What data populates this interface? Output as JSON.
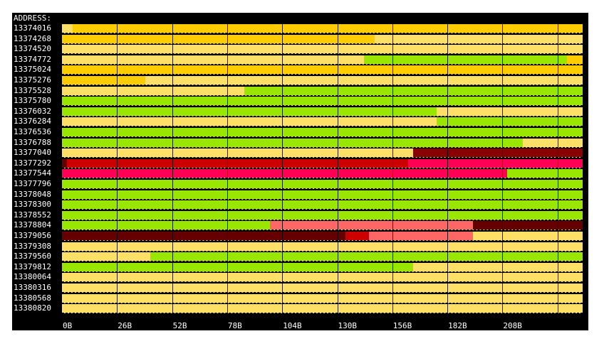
{
  "header_label": "ADDRESS:",
  "ticks": [
    "0B",
    "26B",
    "52B",
    "78B",
    "104B",
    "130B",
    "156B",
    "182B",
    "208B"
  ],
  "colors": {
    "pale_yellow": "#ffe066",
    "gold": "#ffcc00",
    "lime": "#99e600",
    "crimson": "#cc0000",
    "maroon": "#880000",
    "dark_maroon": "#660000",
    "pink": "#ff0055",
    "salmon": "#ff6666"
  },
  "rows": [
    {
      "address": "13374016",
      "segments": [
        {
          "from": 0,
          "to": 0.02,
          "color": "pale_yellow"
        },
        {
          "from": 0.02,
          "to": 1,
          "color": "gold"
        }
      ]
    },
    {
      "address": "13374268",
      "segments": [
        {
          "from": 0,
          "to": 0.6,
          "color": "gold"
        },
        {
          "from": 0.6,
          "to": 1,
          "color": "pale_yellow"
        }
      ]
    },
    {
      "address": "13374520",
      "segments": [
        {
          "from": 0,
          "to": 1,
          "color": "pale_yellow"
        }
      ]
    },
    {
      "address": "13374772",
      "segments": [
        {
          "from": 0,
          "to": 0.58,
          "color": "pale_yellow"
        },
        {
          "from": 0.58,
          "to": 0.97,
          "color": "lime"
        },
        {
          "from": 0.97,
          "to": 1,
          "color": "gold"
        }
      ]
    },
    {
      "address": "13375024",
      "segments": [
        {
          "from": 0,
          "to": 1,
          "color": "gold"
        }
      ]
    },
    {
      "address": "13375276",
      "segments": [
        {
          "from": 0,
          "to": 0.16,
          "color": "gold"
        },
        {
          "from": 0.16,
          "to": 1,
          "color": "pale_yellow"
        }
      ]
    },
    {
      "address": "13375528",
      "segments": [
        {
          "from": 0,
          "to": 0.35,
          "color": "pale_yellow"
        },
        {
          "from": 0.35,
          "to": 1,
          "color": "lime"
        }
      ]
    },
    {
      "address": "13375780",
      "segments": [
        {
          "from": 0,
          "to": 1,
          "color": "lime"
        }
      ]
    },
    {
      "address": "13376032",
      "segments": [
        {
          "from": 0,
          "to": 0.72,
          "color": "lime"
        },
        {
          "from": 0.72,
          "to": 1,
          "color": "pale_yellow"
        }
      ]
    },
    {
      "address": "13376284",
      "segments": [
        {
          "from": 0,
          "to": 0.72,
          "color": "pale_yellow"
        },
        {
          "from": 0.72,
          "to": 1,
          "color": "lime"
        }
      ]
    },
    {
      "address": "13376536",
      "segments": [
        {
          "from": 0,
          "to": 1,
          "color": "lime"
        }
      ]
    },
    {
      "address": "13376788",
      "segments": [
        {
          "from": 0,
          "to": 0.885,
          "color": "lime"
        },
        {
          "from": 0.885,
          "to": 1,
          "color": "pale_yellow"
        }
      ]
    },
    {
      "address": "13377040",
      "segments": [
        {
          "from": 0,
          "to": 0.675,
          "color": "pale_yellow"
        },
        {
          "from": 0.675,
          "to": 1,
          "color": "maroon"
        }
      ]
    },
    {
      "address": "13377292",
      "segments": [
        {
          "from": 0,
          "to": 0.01,
          "color": "dark_maroon"
        },
        {
          "from": 0.01,
          "to": 0.665,
          "color": "crimson"
        },
        {
          "from": 0.665,
          "to": 1,
          "color": "pink"
        }
      ]
    },
    {
      "address": "13377544",
      "segments": [
        {
          "from": 0,
          "to": 0.855,
          "color": "pink"
        },
        {
          "from": 0.855,
          "to": 1,
          "color": "lime"
        }
      ]
    },
    {
      "address": "13377796",
      "segments": [
        {
          "from": 0,
          "to": 1,
          "color": "lime"
        }
      ]
    },
    {
      "address": "13378048",
      "segments": [
        {
          "from": 0,
          "to": 1,
          "color": "lime"
        }
      ]
    },
    {
      "address": "13378300",
      "segments": [
        {
          "from": 0,
          "to": 1,
          "color": "lime"
        }
      ]
    },
    {
      "address": "13378552",
      "segments": [
        {
          "from": 0,
          "to": 1,
          "color": "lime"
        }
      ]
    },
    {
      "address": "13378804",
      "segments": [
        {
          "from": 0,
          "to": 0.4,
          "color": "lime"
        },
        {
          "from": 0.4,
          "to": 0.79,
          "color": "salmon"
        },
        {
          "from": 0.79,
          "to": 1,
          "color": "dark_maroon"
        }
      ]
    },
    {
      "address": "13379056",
      "segments": [
        {
          "from": 0,
          "to": 0.545,
          "color": "dark_maroon"
        },
        {
          "from": 0.545,
          "to": 0.59,
          "color": "crimson"
        },
        {
          "from": 0.59,
          "to": 0.79,
          "color": "salmon"
        },
        {
          "from": 0.79,
          "to": 1,
          "color": "pale_yellow"
        }
      ]
    },
    {
      "address": "13379308",
      "segments": [
        {
          "from": 0,
          "to": 1,
          "color": "pale_yellow"
        }
      ]
    },
    {
      "address": "13379560",
      "segments": [
        {
          "from": 0,
          "to": 0.17,
          "color": "pale_yellow"
        },
        {
          "from": 0.17,
          "to": 1,
          "color": "lime"
        }
      ]
    },
    {
      "address": "13379812",
      "segments": [
        {
          "from": 0,
          "to": 0.675,
          "color": "lime"
        },
        {
          "from": 0.675,
          "to": 1,
          "color": "pale_yellow"
        }
      ]
    },
    {
      "address": "13380064",
      "segments": [
        {
          "from": 0,
          "to": 1,
          "color": "pale_yellow"
        }
      ]
    },
    {
      "address": "13380316",
      "segments": [
        {
          "from": 0,
          "to": 1,
          "color": "pale_yellow"
        }
      ]
    },
    {
      "address": "13380568",
      "segments": [
        {
          "from": 0,
          "to": 1,
          "color": "pale_yellow"
        }
      ]
    },
    {
      "address": "13380820",
      "segments": [
        {
          "from": 0,
          "to": 1,
          "color": "pale_yellow"
        }
      ]
    }
  ]
}
